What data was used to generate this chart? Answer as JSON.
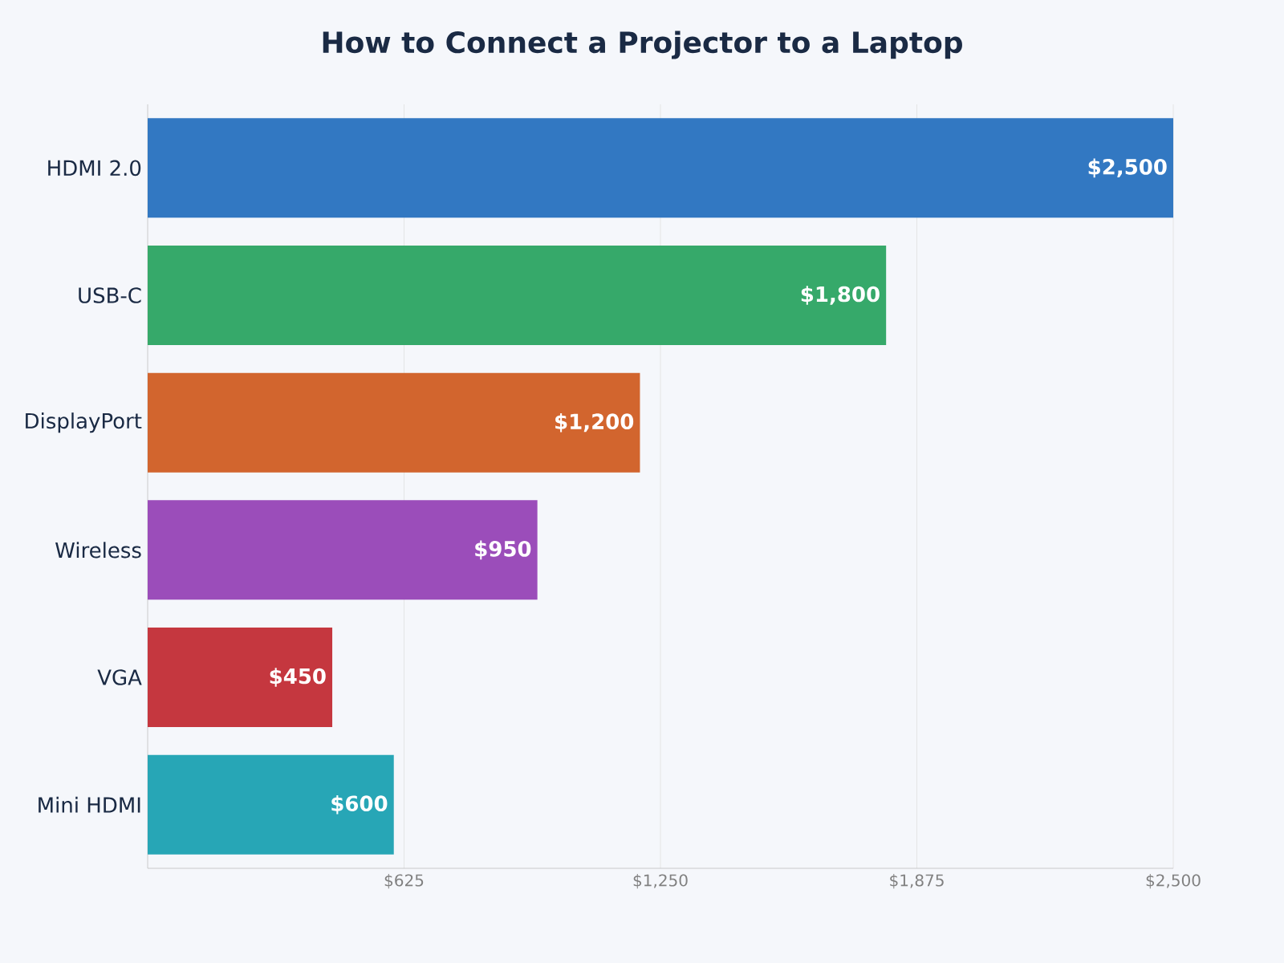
{
  "chart_data": {
    "type": "bar",
    "orientation": "horizontal",
    "title": "How to Connect a Projector to a Laptop",
    "categories": [
      "HDMI 2.0",
      "USB-C",
      "DisplayPort",
      "Wireless",
      "VGA",
      "Mini HDMI"
    ],
    "values": [
      2500,
      1800,
      1200,
      950,
      450,
      600
    ],
    "colors": [
      "#3278c2",
      "#36a96a",
      "#d2652e",
      "#9b4dba",
      "#c5373f",
      "#27a6b6"
    ],
    "value_labels": [
      "$2,500",
      "$1,800",
      "$1,200",
      "$950",
      "$450",
      "$600"
    ],
    "xlim": [
      0,
      2500
    ],
    "xticks": [
      {
        "value": 625,
        "label": "$625"
      },
      {
        "value": 1250,
        "label": "$1,250"
      },
      {
        "value": 1875,
        "label": "$1,875"
      },
      {
        "value": 2500,
        "label": "$2,500"
      }
    ],
    "grid": "x"
  }
}
